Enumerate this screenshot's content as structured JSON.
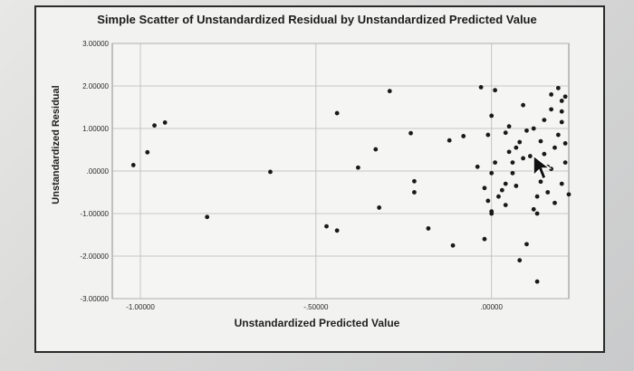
{
  "chart_data": {
    "type": "scatter",
    "title": "Simple Scatter of Unstandardized Residual by Unstandardized Predicted Value",
    "xlabel": "Unstandardized Predicted Value",
    "ylabel": "Unstandardized Residual",
    "xlim": [
      -1.08,
      0.22
    ],
    "ylim": [
      -3.0,
      3.0
    ],
    "x_ticks": [
      {
        "value": -1.0,
        "label": "-1.00000"
      },
      {
        "value": -0.5,
        "label": "-.50000"
      },
      {
        "value": 0.0,
        "label": ".00000"
      }
    ],
    "y_ticks": [
      {
        "value": 3,
        "label": "3.00000"
      },
      {
        "value": 2,
        "label": "2.00000"
      },
      {
        "value": 1,
        "label": "1.00000"
      },
      {
        "value": 0,
        "label": ".00000"
      },
      {
        "value": -1,
        "label": "-1.00000"
      },
      {
        "value": -2,
        "label": "-2.00000"
      },
      {
        "value": -3,
        "label": "-3.00000"
      }
    ],
    "grid": true,
    "marker_color": "#1a1a1a",
    "points": [
      [
        -0.93,
        1.14
      ],
      [
        -0.96,
        1.07
      ],
      [
        -1.02,
        0.14
      ],
      [
        -0.98,
        0.44
      ],
      [
        -0.81,
        -1.08
      ],
      [
        -0.63,
        -0.02
      ],
      [
        -0.44,
        1.36
      ],
      [
        -0.47,
        -1.3
      ],
      [
        -0.44,
        -1.4
      ],
      [
        -0.38,
        0.08
      ],
      [
        -0.29,
        1.88
      ],
      [
        -0.33,
        0.51
      ],
      [
        -0.32,
        -0.86
      ],
      [
        -0.23,
        0.89
      ],
      [
        -0.22,
        -0.24
      ],
      [
        -0.22,
        -0.5
      ],
      [
        -0.18,
        -1.35
      ],
      [
        -0.12,
        0.72
      ],
      [
        -0.11,
        -1.75
      ],
      [
        -0.08,
        0.82
      ],
      [
        -0.03,
        1.97
      ],
      [
        -0.02,
        -1.6
      ],
      [
        -0.04,
        0.1
      ],
      [
        -0.01,
        0.85
      ],
      [
        0.0,
        1.3
      ],
      [
        0.01,
        1.9
      ],
      [
        0.04,
        0.9
      ],
      [
        0.05,
        1.05
      ],
      [
        -0.02,
        -0.4
      ],
      [
        0.0,
        -0.05
      ],
      [
        0.01,
        0.2
      ],
      [
        -0.01,
        -0.7
      ],
      [
        0.0,
        -0.95
      ],
      [
        0.02,
        -0.6
      ],
      [
        0.0,
        -1.0
      ],
      [
        0.04,
        -0.3
      ],
      [
        0.05,
        0.45
      ],
      [
        0.07,
        0.55
      ],
      [
        0.06,
        0.2
      ],
      [
        0.08,
        0.68
      ],
      [
        0.09,
        1.55
      ],
      [
        0.1,
        0.95
      ],
      [
        0.09,
        0.3
      ],
      [
        0.11,
        0.35
      ],
      [
        0.12,
        1.0
      ],
      [
        0.1,
        -1.72
      ],
      [
        0.08,
        -2.1
      ],
      [
        0.14,
        0.7
      ],
      [
        0.12,
        -0.9
      ],
      [
        0.13,
        -0.6
      ],
      [
        0.13,
        -1.0
      ],
      [
        0.14,
        -0.25
      ],
      [
        0.15,
        1.2
      ],
      [
        0.15,
        0.4
      ],
      [
        0.16,
        0.1
      ],
      [
        0.16,
        -0.5
      ],
      [
        0.17,
        1.8
      ],
      [
        0.17,
        1.45
      ],
      [
        0.17,
        0.05
      ],
      [
        0.18,
        0.55
      ],
      [
        0.18,
        -0.75
      ],
      [
        0.19,
        1.95
      ],
      [
        0.19,
        0.85
      ],
      [
        0.2,
        1.65
      ],
      [
        0.2,
        1.4
      ],
      [
        0.2,
        1.15
      ],
      [
        0.21,
        1.75
      ],
      [
        0.21,
        0.65
      ],
      [
        0.21,
        0.2
      ],
      [
        0.22,
        -0.55
      ],
      [
        0.2,
        -0.3
      ],
      [
        0.13,
        -2.6
      ],
      [
        0.06,
        -0.05
      ],
      [
        0.04,
        -0.8
      ],
      [
        0.03,
        -0.45
      ],
      [
        0.07,
        -0.35
      ]
    ]
  }
}
